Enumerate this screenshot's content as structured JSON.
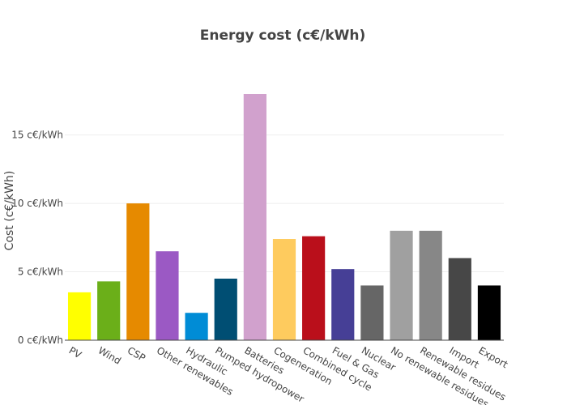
{
  "chart_data": {
    "type": "bar",
    "title": "Energy cost (c€/kWh)",
    "xlabel": "",
    "ylabel": "Cost (c€/kWh)",
    "ylim": [
      0,
      18
    ],
    "yticks": [
      0,
      5,
      10,
      15
    ],
    "ytick_labels": [
      "0 c€/kWh",
      "5 c€/kWh",
      "10 c€/kWh",
      "15 c€/kWh"
    ],
    "categories": [
      "PV",
      "Wind",
      "CSP",
      "Other renewables",
      "Hydraulic",
      "Pumped hydropower",
      "Batteries",
      "Cogeneration",
      "Combined cycle",
      "Fuel & Gas",
      "Nuclear",
      "No renewable residues",
      "Renewable residues",
      "Import",
      "Export"
    ],
    "values": [
      3.5,
      4.3,
      10.0,
      6.5,
      2.0,
      4.5,
      18.0,
      7.4,
      7.6,
      5.2,
      4.0,
      8.0,
      8.0,
      6.0,
      4.0
    ],
    "colors": [
      "#FFFF00",
      "#6BAF19",
      "#E68A00",
      "#9B59C4",
      "#008CD6",
      "#004E73",
      "#D1A1CD",
      "#FECB5E",
      "#BA0F1B",
      "#463F96",
      "#666666",
      "#A0A0A0",
      "#878787",
      "#474747",
      "#000000"
    ],
    "grid": true,
    "legend": "none"
  }
}
